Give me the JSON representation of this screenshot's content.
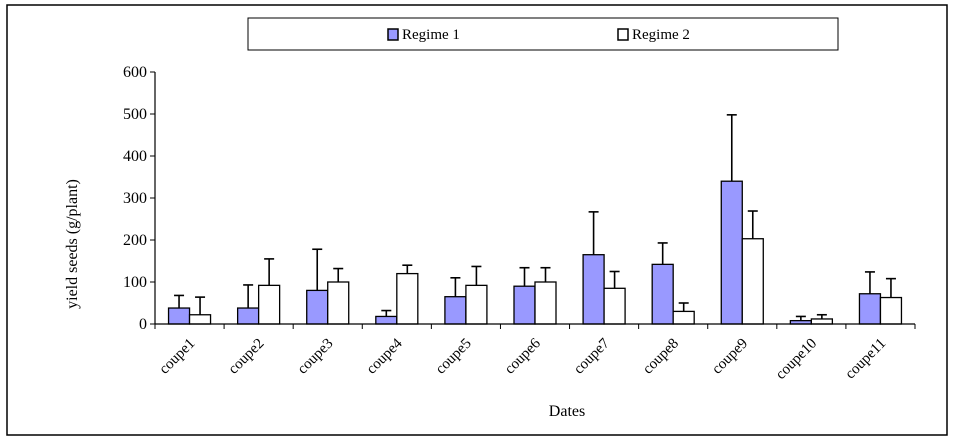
{
  "chart_data": {
    "type": "bar",
    "title": "",
    "xlabel": "Dates",
    "ylabel": "yield seeds  (g/plant)",
    "ylim": [
      0,
      600
    ],
    "yticks": [
      0,
      100,
      200,
      300,
      400,
      500,
      600
    ],
    "categories": [
      "coupe1",
      "coupe2",
      "coupe3",
      "coupe4",
      "coupe5",
      "coupe6",
      "coupe7",
      "coupe8",
      "coupe9",
      "coupe10",
      "coupe11"
    ],
    "series": [
      {
        "name": "Regime 1",
        "color": "#9999ff",
        "values": [
          38,
          38,
          80,
          18,
          65,
          90,
          165,
          142,
          340,
          8,
          72
        ],
        "error_upper": [
          68,
          93,
          178,
          32,
          110,
          134,
          267,
          193,
          498,
          18,
          124
        ]
      },
      {
        "name": "Regime 2",
        "color": "#ffffff",
        "values": [
          22,
          92,
          100,
          120,
          92,
          100,
          85,
          30,
          203,
          12,
          63
        ],
        "error_upper": [
          64,
          155,
          132,
          140,
          137,
          134,
          125,
          50,
          269,
          22,
          108
        ]
      }
    ],
    "legend_position": "top",
    "grid": false
  }
}
